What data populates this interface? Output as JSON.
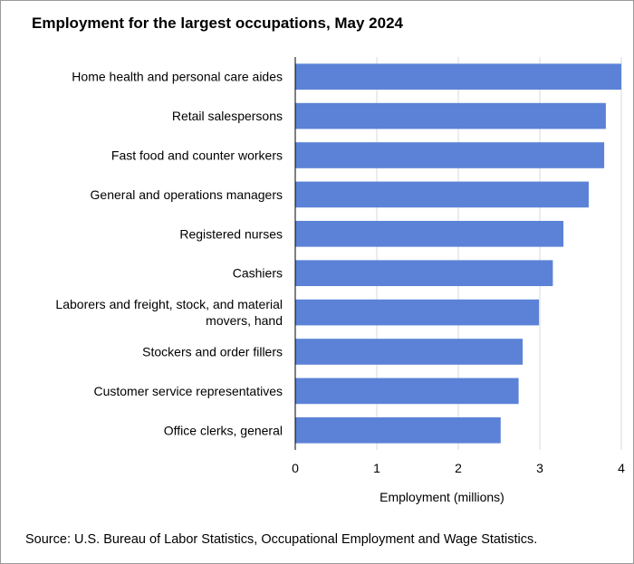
{
  "title": "Employment  for the largest occupations, May 2024",
  "source": "Source: U.S. Bureau of Labor Statistics, Occupational Employment  and Wage Statistics.",
  "colors": {
    "bar": "#5b82d6",
    "grid": "#d9d9d9",
    "axis": "#000000"
  },
  "chart_data": {
    "type": "bar",
    "orientation": "horizontal",
    "title": "Employment  for the largest occupations, May 2024",
    "xlabel": "Employment  (millions)",
    "ylabel": "",
    "xlim": [
      0,
      4
    ],
    "xticks": [
      "0",
      "1",
      "2",
      "3",
      "4"
    ],
    "grid": "vertical",
    "categories": [
      [
        "Home health and personal care aides"
      ],
      [
        "Retail salespersons"
      ],
      [
        "Fast food and counter workers"
      ],
      [
        "General and operations managers"
      ],
      [
        "Registered nurses"
      ],
      [
        "Cashiers"
      ],
      [
        "Laborers and freight, stock, and material",
        "movers, hand"
      ],
      [
        "Stockers and order fillers"
      ],
      [
        "Customer service representatives"
      ],
      [
        "Office clerks, general"
      ]
    ],
    "values": [
      4.0,
      3.81,
      3.79,
      3.6,
      3.29,
      3.16,
      2.99,
      2.79,
      2.74,
      2.52
    ]
  }
}
